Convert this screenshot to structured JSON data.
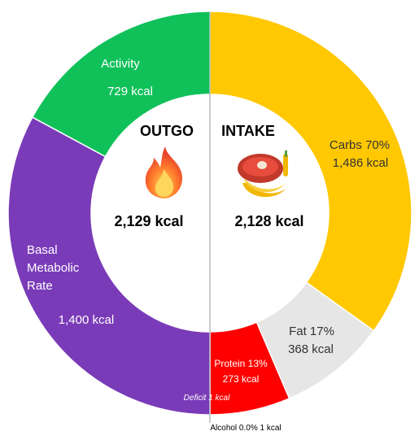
{
  "chart_data": {
    "type": "pie",
    "variant": "split-donut",
    "outgo": {
      "title": "OUTGO",
      "total": "2,129 kcal",
      "icon": "fire-icon",
      "segments": [
        {
          "name": "Activity",
          "label": "Activity",
          "value_label": "729 kcal",
          "kcal": 729,
          "color": "#10c15a"
        },
        {
          "name": "Basal Metabolic Rate",
          "label_lines": [
            "Basal",
            "Metabolic",
            "Rate"
          ],
          "value_label": "1,400 kcal",
          "kcal": 1400,
          "color": "#7a3bb8"
        }
      ]
    },
    "intake": {
      "title": "INTAKE",
      "total": "2,128 kcal",
      "icon": "meal-icon",
      "segments": [
        {
          "name": "Carbs",
          "label": "Carbs 70%",
          "value_label": "1,486 kcal",
          "kcal": 1486,
          "color": "#ffc800"
        },
        {
          "name": "Fat",
          "label": "Fat 17%",
          "value_label": "368 kcal",
          "kcal": 368,
          "color": "#e6e6e6"
        },
        {
          "name": "Protein",
          "label": "Protein 13%",
          "value_label": "273 kcal",
          "kcal": 273,
          "color": "#ff0000"
        },
        {
          "name": "Alcohol",
          "label": "Alcohol 0.0% 1 kcal",
          "kcal": 1,
          "color": "#ffffff"
        }
      ]
    },
    "deficit": {
      "label": "Deficit 1 kcal",
      "kcal": 1
    }
  }
}
